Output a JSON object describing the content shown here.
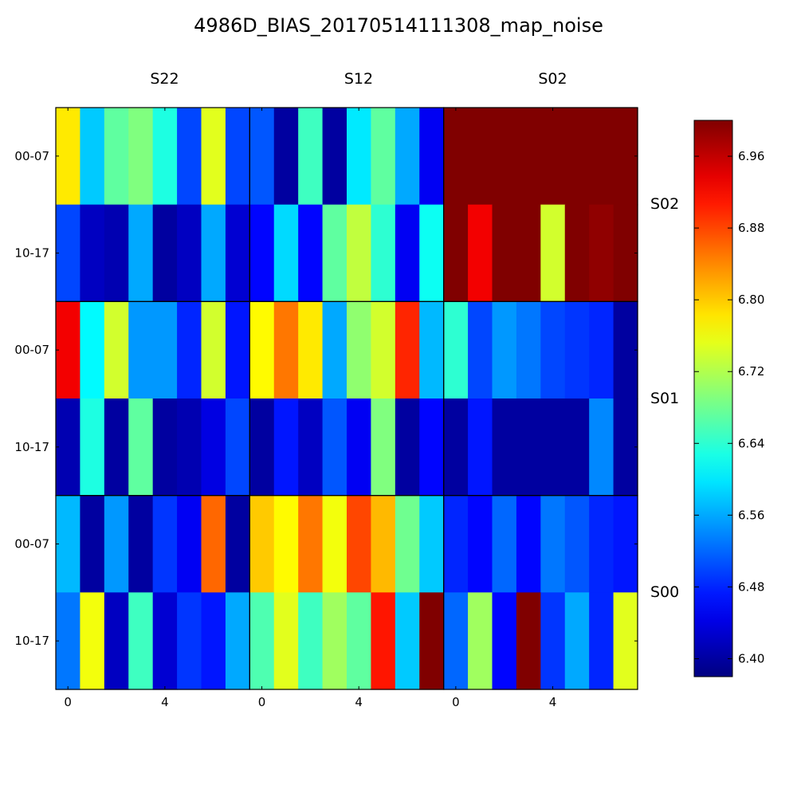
{
  "chart_data": {
    "type": "heatmap",
    "title": "4986D_BIAS_20170514111308_map_noise",
    "column_panels": [
      "S22",
      "S12",
      "S02"
    ],
    "row_panels": [
      "S02",
      "S01",
      "S00"
    ],
    "row_tick_labels": [
      "00-07",
      "10-17"
    ],
    "x_tick_labels": [
      "0",
      "4"
    ],
    "x_tick_positions": [
      0,
      4
    ],
    "colorbar": {
      "min": 6.38,
      "max": 7.0,
      "ticks": [
        6.4,
        6.48,
        6.56,
        6.64,
        6.72,
        6.8,
        6.88,
        6.96
      ],
      "tick_labels": [
        "6.40",
        "6.48",
        "6.56",
        "6.64",
        "6.72",
        "6.80",
        "6.88",
        "6.96"
      ],
      "colormap": "jet"
    },
    "values": [
      [
        6.78,
        6.58,
        6.67,
        6.69,
        6.63,
        6.5,
        6.75,
        6.5,
        6.51,
        6.4,
        6.65,
        6.4,
        6.6,
        6.67,
        6.56,
        6.45,
        7.0,
        7.0,
        7.0,
        7.0,
        7.0,
        7.0,
        7.0,
        7.0
      ],
      [
        6.5,
        6.42,
        6.41,
        6.56,
        6.4,
        6.42,
        6.56,
        6.43,
        6.46,
        6.59,
        6.46,
        6.67,
        6.73,
        6.64,
        6.45,
        6.62,
        7.0,
        6.93,
        7.0,
        7.0,
        6.74,
        7.0,
        6.99,
        7.0
      ],
      [
        6.93,
        6.61,
        6.74,
        6.55,
        6.55,
        6.48,
        6.74,
        6.47,
        6.77,
        6.85,
        6.78,
        6.56,
        6.7,
        6.74,
        6.9,
        6.57,
        6.64,
        6.5,
        6.55,
        6.53,
        6.5,
        6.49,
        6.48,
        6.4
      ],
      [
        6.41,
        6.63,
        6.4,
        6.67,
        6.4,
        6.41,
        6.44,
        6.5,
        6.4,
        6.47,
        6.42,
        6.51,
        6.45,
        6.69,
        6.4,
        6.46,
        6.4,
        6.47,
        6.4,
        6.4,
        6.4,
        6.4,
        6.54,
        6.4
      ],
      [
        6.57,
        6.4,
        6.55,
        6.4,
        6.49,
        6.45,
        6.86,
        6.4,
        6.8,
        6.77,
        6.85,
        6.76,
        6.88,
        6.81,
        6.68,
        6.58,
        6.48,
        6.46,
        6.52,
        6.46,
        6.53,
        6.51,
        6.48,
        6.47
      ],
      [
        6.53,
        6.76,
        6.42,
        6.65,
        6.43,
        6.49,
        6.47,
        6.56,
        6.66,
        6.75,
        6.65,
        6.71,
        6.67,
        6.91,
        6.58,
        7.0,
        6.52,
        6.71,
        6.46,
        7.0,
        6.49,
        6.56,
        6.48,
        6.75
      ]
    ]
  }
}
